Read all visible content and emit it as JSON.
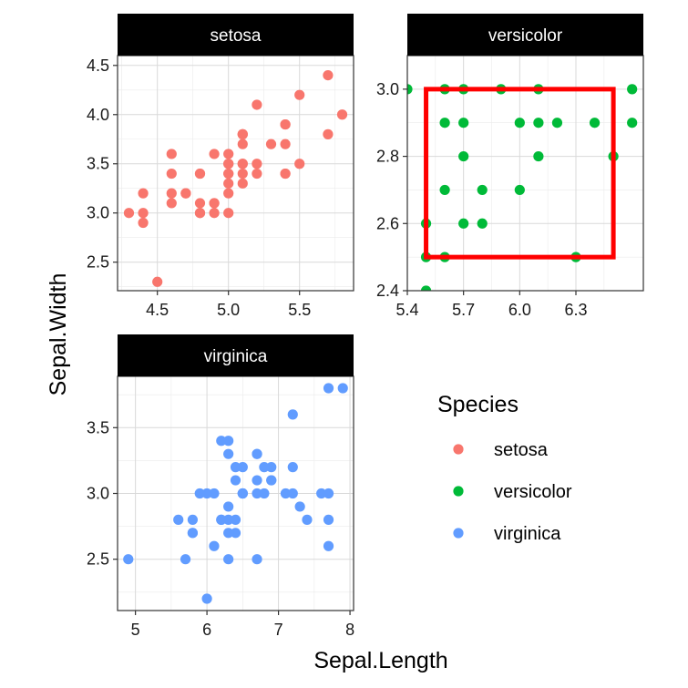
{
  "chart_data": {
    "type": "scatter",
    "xlabel": "Sepal.Length",
    "ylabel": "Sepal.Width",
    "legend": {
      "title": "Species",
      "placement": "right",
      "entries": [
        {
          "label": "setosa",
          "color": "#F8766D"
        },
        {
          "label": "versicolor",
          "color": "#00BA38"
        },
        {
          "label": "virginica",
          "color": "#619CFF"
        }
      ]
    },
    "facets": [
      {
        "strip": "setosa",
        "color": "#F8766D",
        "xlim": [
          4.22,
          5.88
        ],
        "ylim": [
          2.2,
          4.5
        ],
        "ylim_display": [
          2.21,
          4.6
        ],
        "xticks": [
          {
            "v": 4.5,
            "label": "4.5"
          },
          {
            "v": 5.0,
            "label": "5.0"
          },
          {
            "v": 5.5,
            "label": "5.5"
          }
        ],
        "yticks": [
          {
            "v": 2.5,
            "label": "2.5"
          },
          {
            "v": 3.0,
            "label": "3.0"
          },
          {
            "v": 3.5,
            "label": "3.5"
          },
          {
            "v": 4.0,
            "label": "4.0"
          },
          {
            "v": 4.5,
            "label": "4.5"
          }
        ],
        "points": [
          [
            5.1,
            3.5
          ],
          [
            4.9,
            3.0
          ],
          [
            4.7,
            3.2
          ],
          [
            4.6,
            3.1
          ],
          [
            5.0,
            3.6
          ],
          [
            5.4,
            3.9
          ],
          [
            4.6,
            3.4
          ],
          [
            5.0,
            3.4
          ],
          [
            4.4,
            2.9
          ],
          [
            4.9,
            3.1
          ],
          [
            5.4,
            3.7
          ],
          [
            4.8,
            3.4
          ],
          [
            4.8,
            3.0
          ],
          [
            4.3,
            3.0
          ],
          [
            5.8,
            4.0
          ],
          [
            5.7,
            4.4
          ],
          [
            5.4,
            3.9
          ],
          [
            5.1,
            3.5
          ],
          [
            5.7,
            3.8
          ],
          [
            5.1,
            3.8
          ],
          [
            5.4,
            3.4
          ],
          [
            5.1,
            3.7
          ],
          [
            4.6,
            3.6
          ],
          [
            5.1,
            3.3
          ],
          [
            4.8,
            3.4
          ],
          [
            5.0,
            3.0
          ],
          [
            5.0,
            3.4
          ],
          [
            5.2,
            3.5
          ],
          [
            5.2,
            3.4
          ],
          [
            4.7,
            3.2
          ],
          [
            4.8,
            3.1
          ],
          [
            5.4,
            3.4
          ],
          [
            5.2,
            4.1
          ],
          [
            5.5,
            4.2
          ],
          [
            4.9,
            3.1
          ],
          [
            5.0,
            3.2
          ],
          [
            5.5,
            3.5
          ],
          [
            4.9,
            3.6
          ],
          [
            4.4,
            3.0
          ],
          [
            5.1,
            3.4
          ],
          [
            5.0,
            3.5
          ],
          [
            4.5,
            2.3
          ],
          [
            4.4,
            3.2
          ],
          [
            5.0,
            3.5
          ],
          [
            5.1,
            3.8
          ],
          [
            4.8,
            3.0
          ],
          [
            5.1,
            3.8
          ],
          [
            4.6,
            3.2
          ],
          [
            5.3,
            3.7
          ],
          [
            5.0,
            3.3
          ]
        ]
      },
      {
        "strip": "versicolor",
        "color": "#00BA38",
        "xlim": [
          5.4,
          6.66
        ],
        "ylim": [
          2.4,
          3.1
        ],
        "xticks": [
          {
            "v": 5.4,
            "label": "5.4"
          },
          {
            "v": 5.7,
            "label": "5.7"
          },
          {
            "v": 6.0,
            "label": "6.0"
          },
          {
            "v": 6.3,
            "label": "6.3"
          }
        ],
        "yticks": [
          {
            "v": 2.4,
            "label": "2.4"
          },
          {
            "v": 2.6,
            "label": "2.6"
          },
          {
            "v": 2.8,
            "label": "2.8"
          },
          {
            "v": 3.0,
            "label": "3.0"
          }
        ],
        "highlight_box": {
          "x": [
            5.5,
            6.5
          ],
          "y": [
            2.5,
            3.0
          ],
          "color": "#FF0000"
        },
        "points": [
          [
            5.4,
            3.0
          ],
          [
            5.6,
            3.0
          ],
          [
            5.7,
            3.0
          ],
          [
            5.9,
            3.0
          ],
          [
            6.1,
            3.0
          ],
          [
            6.6,
            3.0
          ],
          [
            5.6,
            2.9
          ],
          [
            5.7,
            2.9
          ],
          [
            6.0,
            2.9
          ],
          [
            6.1,
            2.9
          ],
          [
            6.2,
            2.9
          ],
          [
            6.4,
            2.9
          ],
          [
            6.6,
            2.9
          ],
          [
            5.7,
            2.8
          ],
          [
            6.1,
            2.8
          ],
          [
            6.5,
            2.8
          ],
          [
            5.6,
            2.7
          ],
          [
            5.8,
            2.7
          ],
          [
            6.0,
            2.7
          ],
          [
            5.5,
            2.6
          ],
          [
            5.7,
            2.6
          ],
          [
            5.8,
            2.6
          ],
          [
            5.5,
            2.5
          ],
          [
            5.6,
            2.5
          ],
          [
            6.3,
            2.5
          ],
          [
            5.5,
            2.4
          ]
        ]
      },
      {
        "strip": "virginica",
        "color": "#619CFF",
        "xlim": [
          4.75,
          8.05
        ],
        "ylim": [
          2.2,
          3.8
        ],
        "ylim_display": [
          2.11,
          3.89
        ],
        "xticks": [
          {
            "v": 5,
            "label": "5"
          },
          {
            "v": 6,
            "label": "6"
          },
          {
            "v": 7,
            "label": "7"
          },
          {
            "v": 8,
            "label": "8"
          }
        ],
        "yticks": [
          {
            "v": 2.5,
            "label": "2.5"
          },
          {
            "v": 3.0,
            "label": "3.0"
          },
          {
            "v": 3.5,
            "label": "3.5"
          }
        ],
        "points": [
          [
            6.3,
            3.3
          ],
          [
            5.8,
            2.7
          ],
          [
            7.1,
            3.0
          ],
          [
            6.3,
            2.9
          ],
          [
            6.5,
            3.0
          ],
          [
            7.6,
            3.0
          ],
          [
            4.9,
            2.5
          ],
          [
            7.3,
            2.9
          ],
          [
            6.7,
            2.5
          ],
          [
            7.2,
            3.6
          ],
          [
            6.5,
            3.2
          ],
          [
            6.4,
            2.7
          ],
          [
            6.8,
            3.0
          ],
          [
            5.7,
            2.5
          ],
          [
            5.8,
            2.8
          ],
          [
            6.4,
            3.2
          ],
          [
            6.5,
            3.0
          ],
          [
            7.7,
            3.8
          ],
          [
            7.7,
            2.6
          ],
          [
            6.0,
            2.2
          ],
          [
            6.9,
            3.2
          ],
          [
            5.6,
            2.8
          ],
          [
            7.7,
            2.8
          ],
          [
            6.3,
            2.7
          ],
          [
            6.7,
            3.3
          ],
          [
            7.2,
            3.2
          ],
          [
            6.2,
            2.8
          ],
          [
            6.1,
            3.0
          ],
          [
            6.4,
            2.8
          ],
          [
            7.2,
            3.0
          ],
          [
            7.4,
            2.8
          ],
          [
            7.9,
            3.8
          ],
          [
            6.3,
            2.8
          ],
          [
            6.1,
            2.6
          ],
          [
            7.7,
            3.0
          ],
          [
            6.3,
            3.4
          ],
          [
            6.4,
            3.1
          ],
          [
            6.0,
            3.0
          ],
          [
            6.9,
            3.1
          ],
          [
            6.7,
            3.1
          ],
          [
            6.9,
            3.1
          ],
          [
            6.8,
            3.2
          ],
          [
            6.7,
            3.3
          ],
          [
            6.7,
            3.0
          ],
          [
            6.3,
            2.5
          ],
          [
            6.5,
            3.0
          ],
          [
            6.2,
            3.4
          ],
          [
            5.9,
            3.0
          ],
          [
            6.2,
            2.8
          ],
          [
            5.8,
            2.7
          ]
        ]
      }
    ]
  }
}
